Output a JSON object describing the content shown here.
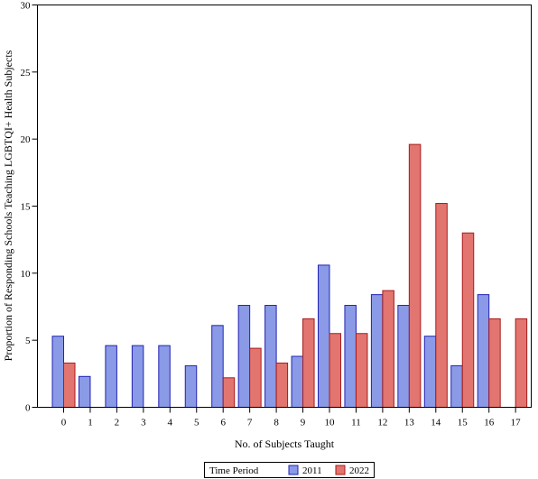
{
  "chart_data": {
    "type": "bar",
    "xlabel": "No. of Subjects Taught",
    "ylabel": "Proportion of Responding Schools Teaching LGBTQI+ Health Subjects",
    "ylim": [
      0,
      30
    ],
    "yticks": [
      "0",
      "5",
      "10",
      "15",
      "20",
      "25",
      "30"
    ],
    "categories": [
      "0",
      "1",
      "2",
      "3",
      "4",
      "5",
      "6",
      "7",
      "8",
      "9",
      "10",
      "11",
      "12",
      "13",
      "14",
      "15",
      "16",
      "17"
    ],
    "series": [
      {
        "name": "2011",
        "color": "#8a9ae6",
        "stroke": "#2323b4",
        "values": [
          5.3,
          2.3,
          4.6,
          4.6,
          4.6,
          3.1,
          6.1,
          7.6,
          7.6,
          3.8,
          10.6,
          7.6,
          8.4,
          7.6,
          5.3,
          3.1,
          8.4,
          0
        ]
      },
      {
        "name": "2022",
        "color": "#e2756f",
        "stroke": "#a81c1c",
        "values": [
          3.3,
          0,
          0,
          0,
          0,
          0,
          2.2,
          4.4,
          3.3,
          6.6,
          5.5,
          5.5,
          8.7,
          19.6,
          15.2,
          13.0,
          6.6,
          6.6
        ]
      }
    ],
    "legend": {
      "title": "Time Period",
      "placement": "bottom-center"
    },
    "grid": false
  }
}
